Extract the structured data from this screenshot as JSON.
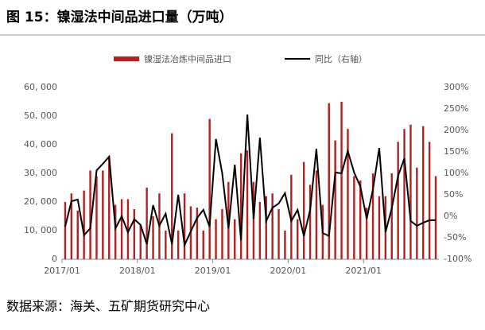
{
  "chart_data": {
    "type": "bar_line",
    "title": "图 15：镍湿法中间品进口量（万吨）",
    "source": "数据来源：海关、五矿期货研究中心",
    "categories": [
      "2017/01",
      null,
      null,
      null,
      null,
      null,
      null,
      null,
      null,
      null,
      null,
      null,
      "2018/01",
      null,
      null,
      null,
      null,
      null,
      null,
      null,
      null,
      null,
      null,
      null,
      "2019/01",
      null,
      null,
      null,
      null,
      null,
      null,
      null,
      null,
      null,
      null,
      null,
      "2020/01",
      null,
      null,
      null,
      null,
      null,
      null,
      null,
      null,
      null,
      null,
      null,
      "2021/01",
      null,
      null,
      null,
      null,
      null,
      null,
      null,
      null,
      null,
      null,
      null
    ],
    "series": [
      {
        "name": "镍湿法冶炼中间品进口",
        "type": "bar",
        "color": "#b22222",
        "values": [
          20000,
          23000,
          17000,
          24000,
          31000,
          29000,
          31000,
          36000,
          19000,
          21000,
          21000,
          17500,
          12000,
          25000,
          15000,
          23000,
          10000,
          44000,
          10000,
          23000,
          18500,
          18000,
          10000,
          49000,
          14000,
          17500,
          27000,
          14000,
          37000,
          38000,
          27000,
          20000,
          22000,
          23000,
          17500,
          10000,
          29500,
          14000,
          34000,
          26000,
          31000,
          19000,
          54500,
          41500,
          55000,
          45500,
          29000,
          27500,
          18000,
          30000,
          22000,
          22000,
          30000,
          41000,
          45500,
          47000,
          32000,
          46500,
          41000,
          29000
        ]
      },
      {
        "name": "同比（右轴）",
        "type": "line",
        "axis": "y2",
        "color": "#000000",
        "values": [
          -24,
          35,
          39,
          -44,
          -28,
          107,
          122,
          139,
          -28,
          0,
          -37,
          -7,
          -20,
          -65,
          26,
          -22,
          6,
          -65,
          50,
          -67,
          -35,
          -4,
          15,
          -24,
          180,
          100,
          -28,
          120,
          -56,
          237,
          -6,
          183,
          -11,
          20,
          30,
          54,
          -11,
          15,
          -46,
          15,
          157,
          -39,
          -46,
          102,
          100,
          152,
          102,
          69,
          -6,
          63,
          159,
          -37,
          19,
          94,
          135,
          -11,
          -22,
          -15,
          -9,
          -9
        ]
      }
    ],
    "ylim": [
      0,
      60000
    ],
    "yticks": [
      {
        "value": 0,
        "label": "0"
      },
      {
        "value": 10000,
        "label": "10, 000"
      },
      {
        "value": 20000,
        "label": "20, 000"
      },
      {
        "value": 30000,
        "label": "30, 000"
      },
      {
        "value": 40000,
        "label": "40, 000"
      },
      {
        "value": 50000,
        "label": "50, 000"
      },
      {
        "value": 60000,
        "label": "60, 000"
      }
    ],
    "y2lim": [
      -100,
      300
    ],
    "y2ticks": [
      {
        "value": -100,
        "label": "-100%"
      },
      {
        "value": -50,
        "label": "-50%"
      },
      {
        "value": 0,
        "label": "0%"
      },
      {
        "value": 50,
        "label": "50%"
      },
      {
        "value": 100,
        "label": "100%"
      },
      {
        "value": 150,
        "label": "150%"
      },
      {
        "value": 200,
        "label": "200%"
      },
      {
        "value": 250,
        "label": "250%"
      },
      {
        "value": 300,
        "label": "300%"
      }
    ],
    "legend": "top"
  }
}
